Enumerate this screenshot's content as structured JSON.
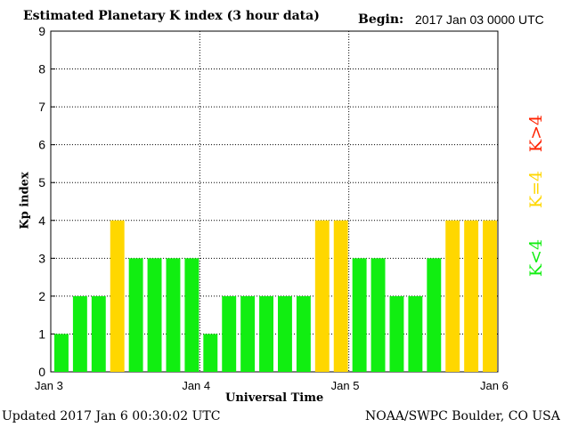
{
  "header": {
    "title": "Estimated Planetary K index (3 hour data)",
    "begin_label": "Begin:",
    "begin_value": "2017 Jan 03 0000 UTC"
  },
  "footer": {
    "updated": "Updated 2017 Jan  6 00:30:02 UTC",
    "source": "NOAA/SWPC Boulder, CO USA"
  },
  "legend": {
    "above": "K>4",
    "equal": "K=4",
    "below": "K<4"
  },
  "colors": {
    "below": "#11ee11",
    "equal": "#ffd700",
    "above": "#ff2200",
    "grid": "#000000"
  },
  "chart_data": {
    "type": "bar",
    "title": "Estimated Planetary K index (3 hour data)",
    "xlabel": "Universal Time",
    "ylabel": "Kp index",
    "ylim": [
      0,
      9
    ],
    "yticks": [
      0,
      1,
      2,
      3,
      4,
      5,
      6,
      7,
      8,
      9
    ],
    "xticks": [
      "Jan 3",
      "Jan 4",
      "Jan 5",
      "Jan 6"
    ],
    "grid": true,
    "values": [
      1,
      2,
      2,
      4,
      3,
      3,
      3,
      3,
      1,
      2,
      2,
      2,
      2,
      2,
      4,
      4,
      3,
      3,
      2,
      2,
      3,
      4,
      4,
      4
    ]
  }
}
